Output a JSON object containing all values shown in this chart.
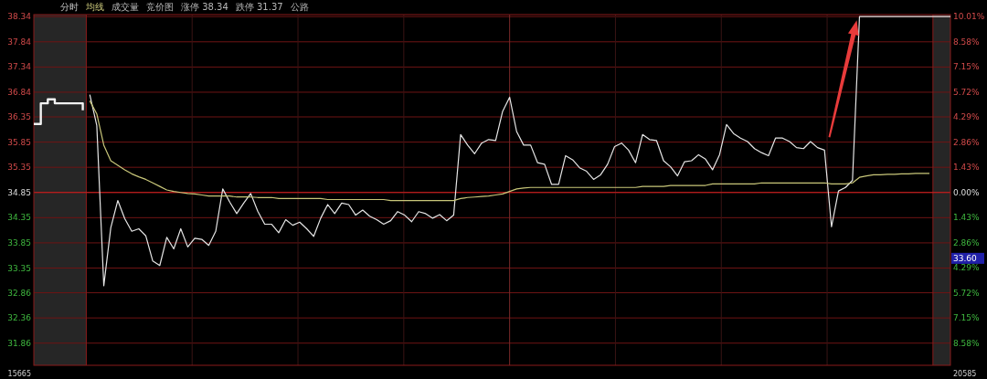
{
  "chart_data": {
    "type": "line",
    "title": "分时",
    "categories": [
      null,
      null,
      null,
      null,
      null,
      null,
      null,
      null,
      null,
      null,
      null,
      null,
      null,
      null,
      null,
      null,
      null,
      null,
      null,
      null,
      null,
      null,
      null,
      null,
      null,
      null,
      null,
      null,
      null,
      null,
      null,
      null,
      null,
      null,
      null,
      null,
      null,
      null,
      null,
      null,
      null,
      null,
      null,
      null,
      null,
      null,
      null,
      null,
      null,
      null,
      null,
      null,
      null,
      null,
      null,
      null,
      null,
      null,
      null,
      null,
      null,
      null,
      null,
      null,
      null,
      null,
      null,
      null,
      null,
      null,
      null,
      null,
      null,
      null,
      null,
      null,
      null,
      null,
      null,
      null,
      null,
      null,
      null,
      null,
      null,
      null,
      null,
      null,
      null,
      null,
      null,
      null,
      null,
      null,
      null,
      null,
      null,
      null,
      null,
      null,
      null,
      null,
      null,
      null,
      null,
      null,
      null,
      null,
      null,
      null,
      null,
      null,
      null,
      null,
      null,
      null,
      null,
      null,
      null,
      null,
      null,
      null,
      null,
      null,
      null,
      null,
      null,
      null,
      null,
      null,
      null,
      null
    ],
    "series": [
      {
        "type": "step",
        "color": "#f2f2f2",
        "values": [
          36.21,
          36.62,
          36.7,
          36.62,
          36.62,
          36.62,
          36.62,
          36.48,
          null,
          null,
          null,
          null,
          null,
          null,
          null,
          null,
          null,
          null,
          null,
          null,
          null,
          null,
          null,
          null,
          null,
          null,
          null,
          null,
          null,
          null,
          null,
          null,
          null,
          null,
          null,
          null,
          null,
          null,
          null,
          null,
          null,
          null,
          null,
          null,
          null,
          null,
          null,
          null,
          null,
          null,
          null,
          null,
          null,
          null,
          null,
          null,
          null,
          null,
          null,
          null,
          null,
          null,
          null,
          null,
          null,
          null,
          null,
          null,
          null,
          null,
          null,
          null,
          null,
          null,
          null,
          null,
          null,
          null,
          null,
          null,
          null,
          null,
          null,
          null,
          null,
          null,
          null,
          null,
          null,
          null,
          null,
          null,
          null,
          null,
          null,
          null,
          null,
          null,
          null,
          null,
          null,
          null,
          null,
          null,
          null,
          null,
          null,
          null,
          null,
          null,
          null,
          null,
          null,
          null,
          null,
          null,
          null,
          null,
          null,
          null,
          null,
          null,
          null,
          null,
          null,
          null,
          null,
          null,
          null,
          null,
          null,
          null
        ]
      },
      {
        "color": "#e6e6e6",
        "values": [
          null,
          null,
          null,
          null,
          null,
          null,
          null,
          null,
          36.79,
          36.18,
          33.0,
          34.15,
          34.69,
          34.33,
          34.08,
          34.13,
          33.99,
          33.49,
          33.4,
          33.96,
          33.73,
          34.13,
          33.77,
          33.94,
          33.92,
          33.8,
          34.08,
          34.92,
          34.66,
          34.43,
          34.64,
          34.83,
          34.48,
          34.22,
          34.22,
          34.05,
          34.31,
          34.2,
          34.26,
          34.13,
          33.98,
          34.34,
          34.61,
          34.43,
          34.64,
          34.61,
          34.4,
          34.5,
          34.38,
          34.31,
          34.22,
          34.29,
          34.47,
          34.4,
          34.27,
          34.47,
          34.43,
          34.34,
          34.41,
          34.29,
          34.4,
          36.0,
          35.79,
          35.62,
          35.83,
          35.9,
          35.88,
          36.46,
          36.74,
          36.06,
          35.79,
          35.79,
          35.44,
          35.41,
          35.01,
          35.01,
          35.58,
          35.5,
          35.34,
          35.27,
          35.11,
          35.2,
          35.41,
          35.76,
          35.83,
          35.69,
          35.44,
          36.0,
          35.9,
          35.88,
          35.48,
          35.36,
          35.18,
          35.46,
          35.48,
          35.6,
          35.51,
          35.3,
          35.6,
          36.2,
          36.02,
          35.93,
          35.86,
          35.72,
          35.64,
          35.58,
          35.93,
          35.93,
          35.86,
          35.74,
          35.72,
          35.86,
          35.74,
          35.69,
          34.17,
          34.88,
          34.95,
          35.09,
          38.34,
          38.34,
          38.34,
          38.34,
          38.34,
          38.34,
          38.34,
          38.34,
          38.34,
          38.34,
          38.34,
          38.34,
          38.34,
          38.34
        ]
      },
      {
        "name": "均线",
        "color": "#c9c77a",
        "values": [
          null,
          null,
          null,
          null,
          null,
          null,
          null,
          null,
          36.67,
          36.41,
          35.79,
          35.48,
          35.39,
          35.3,
          35.22,
          35.16,
          35.11,
          35.04,
          34.97,
          34.9,
          34.87,
          34.85,
          34.83,
          34.82,
          34.8,
          34.78,
          34.78,
          34.78,
          34.78,
          34.76,
          34.76,
          34.76,
          34.75,
          34.75,
          34.75,
          34.73,
          34.73,
          34.73,
          34.73,
          34.73,
          34.73,
          34.73,
          34.71,
          34.71,
          34.71,
          34.71,
          34.71,
          34.71,
          34.71,
          34.71,
          34.71,
          34.69,
          34.69,
          34.69,
          34.69,
          34.69,
          34.69,
          34.69,
          34.69,
          34.69,
          34.69,
          34.73,
          34.75,
          34.76,
          34.77,
          34.78,
          34.8,
          34.82,
          34.87,
          34.92,
          34.94,
          34.95,
          34.95,
          34.95,
          34.95,
          34.95,
          34.95,
          34.95,
          34.95,
          34.95,
          34.95,
          34.95,
          34.95,
          34.95,
          34.95,
          34.95,
          34.95,
          34.97,
          34.97,
          34.97,
          34.97,
          34.99,
          34.99,
          34.99,
          34.99,
          34.99,
          34.99,
          35.02,
          35.02,
          35.02,
          35.02,
          35.02,
          35.02,
          35.02,
          35.04,
          35.04,
          35.04,
          35.04,
          35.04,
          35.04,
          35.04,
          35.04,
          35.04,
          35.04,
          35.02,
          35.02,
          35.02,
          35.04,
          35.15,
          35.18,
          35.2,
          35.2,
          35.21,
          35.21,
          35.22,
          35.22,
          35.23,
          35.23,
          35.23,
          null,
          null,
          null
        ]
      }
    ],
    "ylim": [
      31.42,
      38.38
    ],
    "yticks": [
      38.34,
      37.84,
      37.34,
      36.84,
      36.35,
      35.85,
      35.35,
      34.85,
      34.35,
      33.85,
      33.35,
      32.86,
      32.36,
      31.86
    ],
    "y2lim": [
      -9.84,
      10.13
    ],
    "y2ticks": [
      {
        "value": 10.01,
        "label": "10.01%"
      },
      {
        "value": 8.58,
        "label": "8.58%"
      },
      {
        "value": 7.15,
        "label": "7.15%"
      },
      {
        "value": 5.72,
        "label": "5.72%"
      },
      {
        "value": 4.29,
        "label": "4.29%"
      },
      {
        "value": 2.86,
        "label": "2.86%"
      },
      {
        "value": 1.43,
        "label": "1.43%"
      },
      {
        "value": 0,
        "label": "0.00%"
      },
      {
        "value": -1.43,
        "label": "1.43%"
      },
      {
        "value": -2.86,
        "label": "2.86%"
      },
      {
        "value": -4.29,
        "label": "4.29%"
      },
      {
        "value": -5.72,
        "label": "5.72%"
      },
      {
        "value": -7.15,
        "label": "7.15%"
      },
      {
        "value": -8.58,
        "label": "8.58%"
      }
    ],
    "ref_lines": [
      {
        "axis": "y",
        "value": 34.85,
        "color": "#d02020"
      }
    ],
    "grid": true,
    "legend": "top left",
    "annotations": [
      "成交量",
      "竞价图",
      "涨停 38.34",
      "跌停 31.37",
      "公路",
      "15665",
      "20585",
      "33.60"
    ]
  }
}
